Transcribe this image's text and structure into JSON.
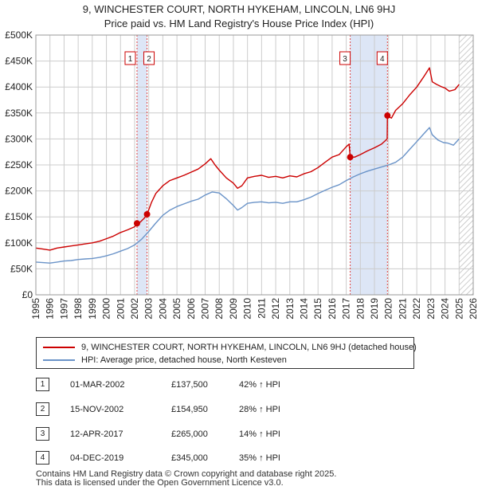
{
  "header": {
    "title": "9, WINCHESTER COURT, NORTH HYKEHAM, LINCOLN, LN6 9HJ",
    "subtitle": "Price paid vs. HM Land Registry's House Price Index (HPI)"
  },
  "chart_data": {
    "type": "line",
    "title": "9, WINCHESTER COURT, NORTH HYKEHAM, LINCOLN, LN6 9HJ",
    "subtitle": "Price paid vs. HM Land Registry's House Price Index (HPI)",
    "xlabel": "",
    "ylabel": "",
    "xlim": [
      1995,
      2026
    ],
    "ylim": [
      0,
      500000
    ],
    "x_ticks": [
      1995,
      1996,
      1997,
      1998,
      1999,
      2000,
      2001,
      2002,
      2003,
      2004,
      2005,
      2006,
      2007,
      2008,
      2009,
      2010,
      2011,
      2012,
      2013,
      2014,
      2015,
      2016,
      2017,
      2018,
      2019,
      2020,
      2021,
      2022,
      2023,
      2024,
      2025,
      2026
    ],
    "y_ticks": [
      0,
      50000,
      100000,
      150000,
      200000,
      250000,
      300000,
      350000,
      400000,
      450000,
      500000
    ],
    "y_tick_labels": [
      "£0",
      "£50K",
      "£100K",
      "£150K",
      "£200K",
      "£250K",
      "£300K",
      "£350K",
      "£400K",
      "£450K",
      "£500K"
    ],
    "grid": true,
    "shaded_ranges": [
      [
        2002.17,
        2002.88
      ],
      [
        2017.28,
        2019.92
      ]
    ],
    "future_hatch_from": 2025.0,
    "series": [
      {
        "name": "9, WINCHESTER COURT, NORTH HYKEHAM, LINCOLN, LN6 9HJ (detached house)",
        "color": "#cc0000",
        "x": [
          1995.0,
          1995.5,
          1996.0,
          1996.5,
          1997.0,
          1997.5,
          1998.0,
          1998.5,
          1999.0,
          1999.5,
          2000.0,
          2000.5,
          2001.0,
          2001.5,
          2002.0,
          2002.17,
          2002.4,
          2002.7,
          2002.88,
          2003.2,
          2003.5,
          2004.0,
          2004.5,
          2005.0,
          2005.5,
          2006.0,
          2006.5,
          2007.0,
          2007.4,
          2007.7,
          2008.0,
          2008.5,
          2009.0,
          2009.3,
          2009.6,
          2010.0,
          2010.5,
          2011.0,
          2011.5,
          2012.0,
          2012.5,
          2013.0,
          2013.5,
          2014.0,
          2014.5,
          2015.0,
          2015.5,
          2016.0,
          2016.5,
          2017.0,
          2017.2,
          2017.28,
          2017.6,
          2018.0,
          2018.5,
          2019.0,
          2019.5,
          2019.9,
          2019.92,
          2020.2,
          2020.5,
          2021.0,
          2021.5,
          2022.0,
          2022.5,
          2022.9,
          2023.1,
          2023.4,
          2023.8,
          2024.0,
          2024.3,
          2024.7,
          2025.0
        ],
        "values": [
          90000,
          88000,
          86000,
          90000,
          92000,
          94000,
          96000,
          98000,
          100000,
          103000,
          108000,
          113000,
          120000,
          125000,
          131000,
          137500,
          140000,
          148000,
          154950,
          178000,
          195000,
          210000,
          220000,
          225000,
          230000,
          236000,
          242000,
          252000,
          262000,
          250000,
          240000,
          225000,
          215000,
          205000,
          210000,
          225000,
          228000,
          230000,
          226000,
          228000,
          225000,
          229000,
          227000,
          233000,
          237000,
          245000,
          255000,
          265000,
          270000,
          285000,
          290000,
          265000,
          265000,
          270000,
          277000,
          283000,
          290000,
          300000,
          345000,
          340000,
          355000,
          368000,
          385000,
          400000,
          420000,
          437000,
          410000,
          405000,
          400000,
          398000,
          392000,
          395000,
          405000
        ]
      },
      {
        "name": "HPI: Average price, detached house, North Kesteven",
        "color": "#6a93c8",
        "x": [
          1995.0,
          1995.5,
          1996.0,
          1996.5,
          1997.0,
          1997.5,
          1998.0,
          1998.5,
          1999.0,
          1999.5,
          2000.0,
          2000.5,
          2001.0,
          2001.5,
          2002.0,
          2002.5,
          2003.0,
          2003.5,
          2004.0,
          2004.5,
          2005.0,
          2005.5,
          2006.0,
          2006.5,
          2007.0,
          2007.5,
          2008.0,
          2008.5,
          2009.0,
          2009.3,
          2009.6,
          2010.0,
          2010.5,
          2011.0,
          2011.5,
          2012.0,
          2012.5,
          2013.0,
          2013.5,
          2014.0,
          2014.5,
          2015.0,
          2015.5,
          2016.0,
          2016.5,
          2017.0,
          2017.5,
          2018.0,
          2018.5,
          2019.0,
          2019.5,
          2020.0,
          2020.5,
          2021.0,
          2021.5,
          2022.0,
          2022.5,
          2022.9,
          2023.1,
          2023.5,
          2023.9,
          2024.2,
          2024.6,
          2025.0
        ],
        "values": [
          63000,
          62000,
          61000,
          63000,
          65000,
          66000,
          68000,
          69000,
          70000,
          72000,
          75000,
          79000,
          84000,
          89000,
          96000,
          107000,
          122000,
          138000,
          153000,
          163000,
          170000,
          175000,
          180000,
          184000,
          192000,
          198000,
          196000,
          185000,
          172000,
          163000,
          168000,
          176000,
          178000,
          179000,
          177000,
          178000,
          176000,
          179000,
          179000,
          183000,
          188000,
          195000,
          201000,
          207000,
          212000,
          220000,
          227000,
          233000,
          238000,
          242000,
          246000,
          250000,
          255000,
          265000,
          280000,
          295000,
          310000,
          322000,
          308000,
          298000,
          293000,
          292000,
          288000,
          300000
        ]
      }
    ],
    "sales": [
      {
        "label": "1",
        "x": 2002.17,
        "price": 137500
      },
      {
        "label": "2",
        "x": 2002.88,
        "price": 154950
      },
      {
        "label": "3",
        "x": 2017.28,
        "price": 265000
      },
      {
        "label": "4",
        "x": 2019.92,
        "price": 345000
      }
    ]
  },
  "legend": {
    "items": [
      {
        "label": "9, WINCHESTER COURT, NORTH HYKEHAM, LINCOLN, LN6 9HJ (detached house)",
        "color": "#cc0000"
      },
      {
        "label": "HPI: Average price, detached house, North Kesteven",
        "color": "#6a93c8"
      }
    ]
  },
  "transactions": [
    {
      "num": "1",
      "date": "01-MAR-2002",
      "price": "£137,500",
      "hpi": "42% ↑ HPI"
    },
    {
      "num": "2",
      "date": "15-NOV-2002",
      "price": "£154,950",
      "hpi": "28% ↑ HPI"
    },
    {
      "num": "3",
      "date": "12-APR-2017",
      "price": "£265,000",
      "hpi": "14% ↑ HPI"
    },
    {
      "num": "4",
      "date": "04-DEC-2019",
      "price": "£345,000",
      "hpi": "35% ↑ HPI"
    }
  ],
  "footer": {
    "line1": "Contains HM Land Registry data © Crown copyright and database right 2025.",
    "line2": "This data is licensed under the Open Government Licence v3.0."
  }
}
